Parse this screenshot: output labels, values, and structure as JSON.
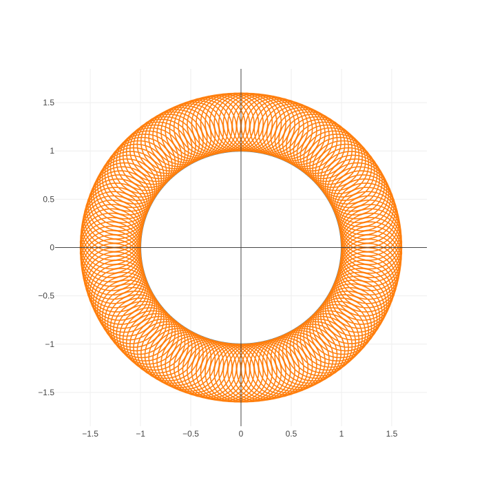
{
  "chart_data": {
    "type": "line",
    "title": "",
    "xlabel": "",
    "ylabel": "",
    "xlim": [
      -1.85,
      1.85
    ],
    "ylim": [
      -1.85,
      1.85
    ],
    "x_ticks": [
      {
        "value": -1.5,
        "label": "−1.5"
      },
      {
        "value": -1.0,
        "label": "−1"
      },
      {
        "value": -0.5,
        "label": "−0.5"
      },
      {
        "value": 0,
        "label": "0"
      },
      {
        "value": 0.5,
        "label": "0.5"
      },
      {
        "value": 1.0,
        "label": "1"
      },
      {
        "value": 1.5,
        "label": "1.5"
      }
    ],
    "y_ticks": [
      {
        "value": 1.5,
        "label": "1.5"
      },
      {
        "value": 1.0,
        "label": "1"
      },
      {
        "value": 0.5,
        "label": "0.5"
      },
      {
        "value": 0,
        "label": "0"
      },
      {
        "value": -0.5,
        "label": "−0.5"
      },
      {
        "value": -1.0,
        "label": "−1"
      },
      {
        "value": -1.5,
        "label": "−1.5"
      }
    ],
    "grid": true,
    "zero_lines": true,
    "legend": "none",
    "series": [
      {
        "kind": "unit-circle",
        "radius": 1.0,
        "color": "#1f77b4"
      },
      {
        "kind": "epicycle-band",
        "radius": 1.3,
        "loop_radius": 0.3,
        "loops": 181,
        "turns": 2,
        "color": "#ff7f0e"
      }
    ]
  },
  "colors": {
    "grid": "#eeeeee",
    "zeroline": "#444444",
    "tick_text": "#444444",
    "background": "#ffffff"
  }
}
